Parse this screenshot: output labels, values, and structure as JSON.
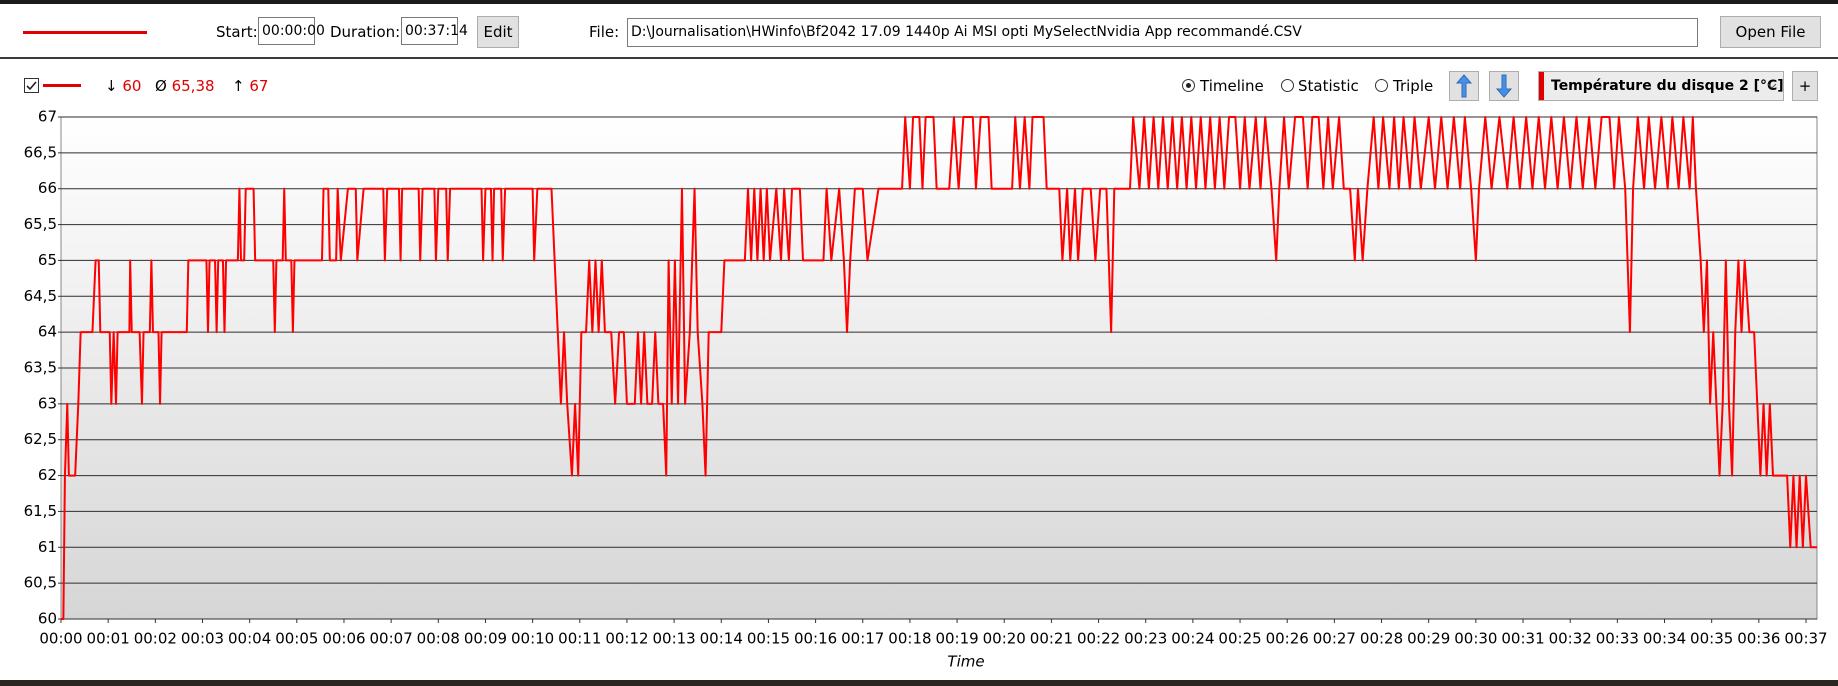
{
  "toolbar": {
    "start_label": "Start:",
    "start": "00:00:00",
    "duration_label": "Duration:",
    "duration": "00:37:14",
    "edit": "Edit",
    "file_label": "File:",
    "file": "D:\\Journalisation\\HWinfo\\Bf2042 17.09 1440p Ai MSI opti MySelectNvidia App recommandé.CSV",
    "open_file": "Open File"
  },
  "stats": [
    {
      "symbol": "↓",
      "value": "60"
    },
    {
      "symbol": "Ø",
      "value": "65,38"
    },
    {
      "symbol": "↑",
      "value": "67"
    }
  ],
  "view_modes": [
    {
      "label": "Timeline",
      "selected": true
    },
    {
      "label": "Statistic",
      "selected": false
    },
    {
      "label": "Triple",
      "selected": false
    }
  ],
  "add_button": "+",
  "chart_data": {
    "type": "line",
    "xlabel": "Time",
    "x": [
      0,
      3,
      5,
      8,
      10,
      18,
      22,
      25,
      40,
      44,
      48,
      50,
      62,
      64,
      67,
      70,
      72,
      87,
      88,
      90,
      100,
      103,
      105,
      113,
      115,
      117,
      124,
      126,
      128,
      160,
      162,
      185,
      187,
      189,
      196,
      198,
      200,
      206,
      208,
      210,
      225,
      227,
      229,
      233,
      235,
      245,
      247,
      270,
      272,
      274,
      282,
      284,
      286,
      293,
      295,
      297,
      332,
      334,
      340,
      342,
      350,
      352,
      356,
      365,
      375,
      377,
      385,
      410,
      412,
      415,
      430,
      432,
      434,
      455,
      457,
      460,
      475,
      477,
      480,
      490,
      492,
      495,
      535,
      537,
      540,
      547,
      549,
      551,
      560,
      562,
      565,
      600,
      602,
      606,
      624,
      628,
      632,
      636,
      640,
      644,
      650,
      654,
      658,
      662,
      668,
      672,
      676,
      680,
      684,
      688,
      692,
      700,
      705,
      710,
      716,
      720,
      730,
      734,
      738,
      742,
      746,
      752,
      756,
      760,
      766,
      770,
      773,
      777,
      781,
      785,
      790,
      794,
      800,
      806,
      810,
      816,
      820,
      824,
      830,
      840,
      844,
      870,
      874,
      878,
      882,
      886,
      890,
      894,
      898,
      902,
      910,
      916,
      920,
      926,
      930,
      940,
      944,
      970,
      974,
      980,
      990,
      996,
      1000,
      1004,
      1010,
      1020,
      1026,
      1040,
      1070,
      1074,
      1080,
      1084,
      1092,
      1096,
      1100,
      1110,
      1114,
      1130,
      1136,
      1142,
      1148,
      1160,
      1164,
      1170,
      1180,
      1184,
      1210,
      1214,
      1220,
      1226,
      1232,
      1236,
      1250,
      1254,
      1270,
      1274,
      1280,
      1284,
      1290,
      1294,
      1300,
      1310,
      1316,
      1322,
      1330,
      1336,
      1340,
      1360,
      1364,
      1372,
      1378,
      1384,
      1390,
      1396,
      1402,
      1408,
      1414,
      1420,
      1426,
      1432,
      1438,
      1444,
      1450,
      1456,
      1462,
      1468,
      1474,
      1480,
      1486,
      1494,
      1500,
      1506,
      1512,
      1520,
      1526,
      1532,
      1540,
      1546,
      1550,
      1556,
      1562,
      1570,
      1580,
      1586,
      1592,
      1600,
      1606,
      1612,
      1618,
      1626,
      1632,
      1640,
      1646,
      1650,
      1656,
      1662,
      1670,
      1676,
      1682,
      1690,
      1696,
      1702,
      1708,
      1716,
      1722,
      1730,
      1740,
      1748,
      1756,
      1764,
      1772,
      1780,
      1786,
      1794,
      1800,
      1804,
      1812,
      1820,
      1830,
      1840,
      1848,
      1856,
      1864,
      1872,
      1880,
      1888,
      1896,
      1904,
      1912,
      1920,
      1928,
      1936,
      1944,
      1952,
      1960,
      1970,
      1976,
      1982,
      1990,
      1996,
      2000,
      2006,
      2014,
      2020,
      2028,
      2036,
      2044,
      2050,
      2058,
      2064,
      2072,
      2076,
      2080,
      2086,
      2090,
      2094,
      2098,
      2102,
      2106,
      2110,
      2114,
      2118,
      2122,
      2126,
      2130,
      2134,
      2138,
      2142,
      2148,
      2154,
      2158,
      2162,
      2166,
      2170,
      2174,
      2178,
      2196,
      2200,
      2204,
      2208,
      2212,
      2216,
      2220,
      2226,
      2234
    ],
    "series": [
      {
        "name": "Température du disque 2 [°C]",
        "color": "#ff0000",
        "values": [
          60,
          60,
          62,
          63,
          62,
          62,
          63,
          64,
          64,
          65,
          65,
          64,
          64,
          63,
          64,
          63,
          64,
          64,
          65,
          64,
          64,
          63,
          64,
          64,
          65,
          64,
          64,
          63,
          64,
          64,
          65,
          65,
          64,
          65,
          65,
          64,
          65,
          65,
          64,
          65,
          65,
          66,
          65,
          65,
          66,
          66,
          65,
          65,
          64,
          65,
          65,
          66,
          65,
          65,
          64,
          65,
          65,
          66,
          66,
          65,
          65,
          66,
          65,
          66,
          66,
          65,
          66,
          66,
          65,
          66,
          66,
          65,
          66,
          66,
          65,
          66,
          66,
          65,
          66,
          66,
          65,
          66,
          66,
          65,
          66,
          66,
          65,
          66,
          66,
          65,
          66,
          66,
          65,
          66,
          66,
          65,
          64,
          63,
          64,
          63,
          62,
          63,
          62,
          64,
          64,
          65,
          64,
          65,
          64,
          65,
          64,
          64,
          63,
          64,
          64,
          63,
          63,
          64,
          63,
          64,
          63,
          63,
          64,
          63,
          63,
          62,
          65,
          63,
          65,
          63,
          66,
          63,
          64,
          66,
          64,
          63,
          62,
          64,
          64,
          64,
          65,
          65,
          66,
          65,
          66,
          65,
          66,
          65,
          66,
          65,
          66,
          65,
          66,
          65,
          66,
          66,
          65,
          65,
          66,
          65,
          66,
          65,
          64,
          65,
          66,
          66,
          65,
          66,
          66,
          67,
          66,
          67,
          67,
          66,
          67,
          67,
          66,
          66,
          67,
          66,
          67,
          67,
          66,
          67,
          67,
          66,
          66,
          67,
          66,
          67,
          66,
          67,
          67,
          66,
          66,
          65,
          66,
          65,
          66,
          65,
          66,
          66,
          65,
          66,
          66,
          64,
          66,
          66,
          67,
          66,
          67,
          66,
          67,
          66,
          67,
          66,
          67,
          66,
          67,
          66,
          67,
          66,
          67,
          66,
          67,
          66,
          67,
          66,
          67,
          67,
          66,
          67,
          66,
          67,
          66,
          67,
          66,
          65,
          66,
          67,
          66,
          67,
          67,
          66,
          67,
          67,
          66,
          67,
          66,
          67,
          66,
          66,
          65,
          66,
          65,
          66,
          67,
          66,
          67,
          66,
          67,
          66,
          67,
          66,
          67,
          66,
          67,
          66,
          67,
          66,
          67,
          66,
          67,
          66,
          65,
          66,
          67,
          66,
          67,
          66,
          67,
          66,
          67,
          66,
          67,
          66,
          67,
          66,
          67,
          66,
          67,
          66,
          67,
          66,
          67,
          67,
          66,
          67,
          66,
          64,
          66,
          67,
          66,
          67,
          66,
          67,
          66,
          67,
          66,
          67,
          66,
          67,
          66,
          65,
          64,
          65,
          63,
          64,
          63,
          62,
          63,
          65,
          63,
          62,
          64,
          65,
          64,
          65,
          64,
          64,
          63,
          62,
          63,
          62,
          63,
          62,
          62,
          61,
          62,
          61,
          62,
          61,
          62,
          61,
          61
        ]
      }
    ],
    "xlim": [
      0,
      2234
    ],
    "xticks": [
      {
        "value": 0,
        "label": "00:00"
      },
      {
        "value": 60,
        "label": "00:01"
      },
      {
        "value": 120,
        "label": "00:02"
      },
      {
        "value": 180,
        "label": "00:03"
      },
      {
        "value": 240,
        "label": "00:04"
      },
      {
        "value": 300,
        "label": "00:05"
      },
      {
        "value": 360,
        "label": "00:06"
      },
      {
        "value": 420,
        "label": "00:07"
      },
      {
        "value": 480,
        "label": "00:08"
      },
      {
        "value": 540,
        "label": "00:09"
      },
      {
        "value": 600,
        "label": "00:10"
      },
      {
        "value": 660,
        "label": "00:11"
      },
      {
        "value": 720,
        "label": "00:12"
      },
      {
        "value": 780,
        "label": "00:13"
      },
      {
        "value": 840,
        "label": "00:14"
      },
      {
        "value": 900,
        "label": "00:15"
      },
      {
        "value": 960,
        "label": "00:16"
      },
      {
        "value": 1020,
        "label": "00:17"
      },
      {
        "value": 1080,
        "label": "00:18"
      },
      {
        "value": 1140,
        "label": "00:19"
      },
      {
        "value": 1200,
        "label": "00:20"
      },
      {
        "value": 1260,
        "label": "00:21"
      },
      {
        "value": 1320,
        "label": "00:22"
      },
      {
        "value": 1380,
        "label": "00:23"
      },
      {
        "value": 1440,
        "label": "00:24"
      },
      {
        "value": 1500,
        "label": "00:25"
      },
      {
        "value": 1560,
        "label": "00:26"
      },
      {
        "value": 1620,
        "label": "00:27"
      },
      {
        "value": 1680,
        "label": "00:28"
      },
      {
        "value": 1740,
        "label": "00:29"
      },
      {
        "value": 1800,
        "label": "00:30"
      },
      {
        "value": 1860,
        "label": "00:31"
      },
      {
        "value": 1920,
        "label": "00:32"
      },
      {
        "value": 1980,
        "label": "00:33"
      },
      {
        "value": 2040,
        "label": "00:34"
      },
      {
        "value": 2100,
        "label": "00:35"
      },
      {
        "value": 2160,
        "label": "00:36"
      },
      {
        "value": 2220,
        "label": "00:37"
      }
    ],
    "ylim": [
      60,
      67
    ],
    "yticks": [
      60,
      {
        "value": 60.5,
        "label": "60,5"
      },
      61,
      {
        "value": 61.5,
        "label": "61,5"
      },
      62,
      {
        "value": 62.5,
        "label": "62,5"
      },
      63,
      {
        "value": 63.5,
        "label": "63,5"
      },
      64,
      {
        "value": 64.5,
        "label": "64,5"
      },
      65,
      {
        "value": 65.5,
        "label": "65,5"
      },
      66,
      {
        "value": 66.5,
        "label": "66,5"
      },
      67
    ],
    "grid": true
  }
}
